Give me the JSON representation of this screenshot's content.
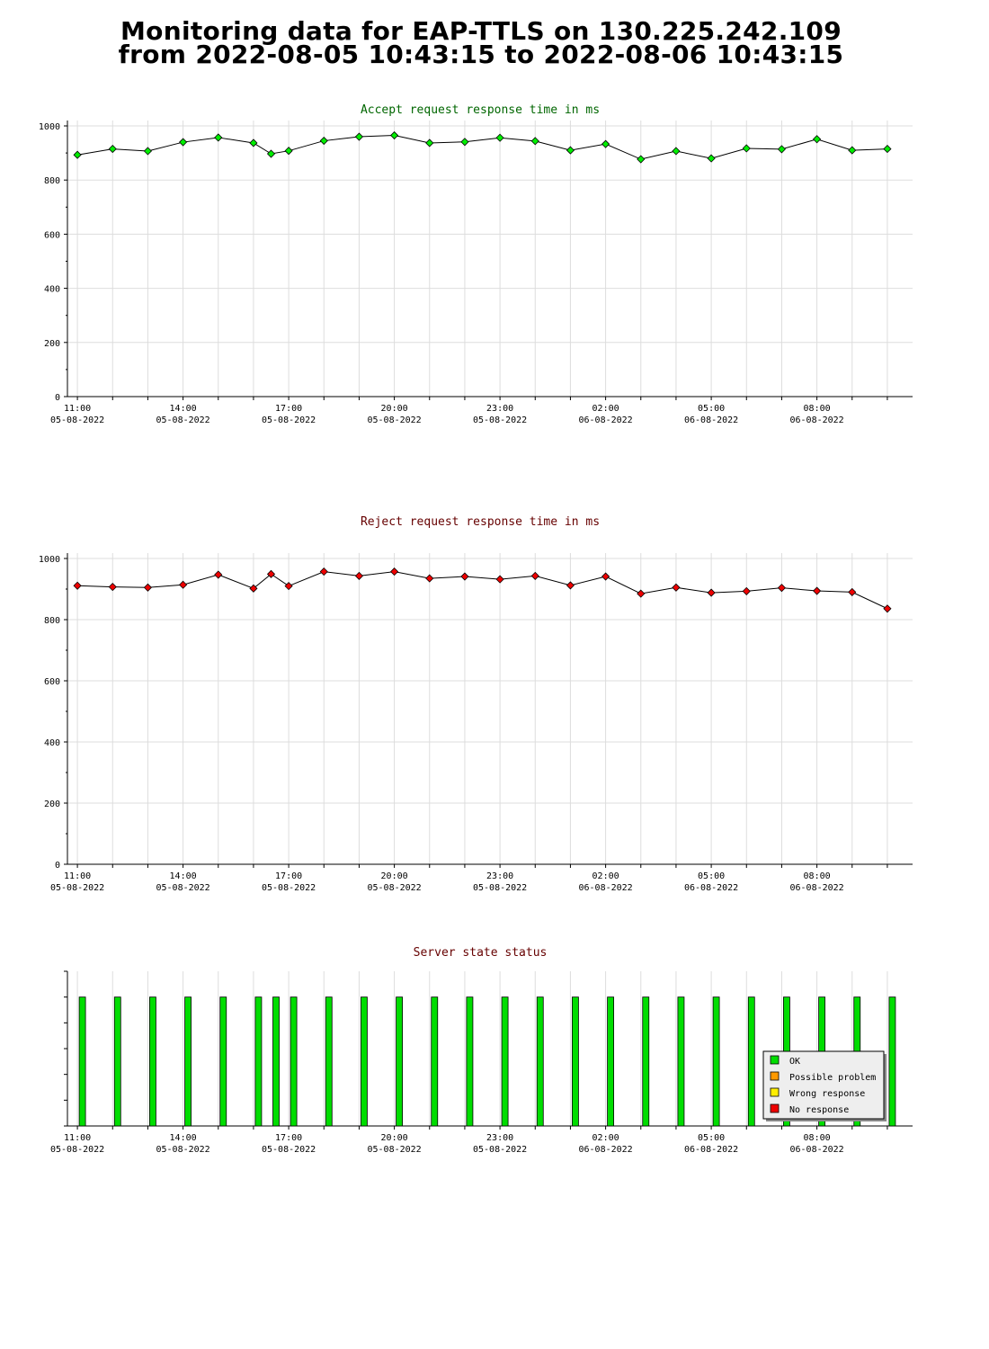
{
  "page": {
    "title_line1": "Monitoring data for EAP-TTLS on 130.225.242.109",
    "title_line2": "from 2022-08-05 10:43:15 to 2022-08-06 10:43:15"
  },
  "colors": {
    "accept_title": "#006600",
    "reject_title": "#660000",
    "status_title": "#660000",
    "accept_marker": "#00ee00",
    "reject_marker": "#ee0000",
    "ok": "#00dd00",
    "possible_problem": "#ff9900",
    "wrong_response": "#ffee00",
    "no_response": "#ee0000",
    "grid": "#dddddd"
  },
  "x_ticks": [
    {
      "time": "11:00",
      "date": "05-08-2022"
    },
    {
      "time": "14:00",
      "date": "05-08-2022"
    },
    {
      "time": "17:00",
      "date": "05-08-2022"
    },
    {
      "time": "20:00",
      "date": "05-08-2022"
    },
    {
      "time": "23:00",
      "date": "05-08-2022"
    },
    {
      "time": "02:00",
      "date": "06-08-2022"
    },
    {
      "time": "05:00",
      "date": "06-08-2022"
    },
    {
      "time": "08:00",
      "date": "06-08-2022"
    }
  ],
  "chart_data": [
    {
      "type": "line",
      "title": "Accept request response time in ms",
      "ylim": [
        0,
        1000
      ],
      "y_ticks": [
        0,
        200,
        400,
        600,
        800,
        1000
      ],
      "x_range": [
        "2022-08-05 10:43",
        "2022-08-06 10:43"
      ],
      "grid": true,
      "x": [
        "2022-08-05 11:00",
        "2022-08-05 12:00",
        "2022-08-05 13:00",
        "2022-08-05 14:00",
        "2022-08-05 15:00",
        "2022-08-05 16:00",
        "2022-08-05 16:30",
        "2022-08-05 17:00",
        "2022-08-05 18:00",
        "2022-08-05 19:00",
        "2022-08-05 20:00",
        "2022-08-05 21:00",
        "2022-08-05 22:00",
        "2022-08-05 23:00",
        "2022-08-06 00:00",
        "2022-08-06 01:00",
        "2022-08-06 02:00",
        "2022-08-06 03:00",
        "2022-08-06 04:00",
        "2022-08-06 05:00",
        "2022-08-06 06:00",
        "2022-08-06 07:00",
        "2022-08-06 08:00",
        "2022-08-06 09:00",
        "2022-08-06 10:00"
      ],
      "values": [
        893,
        915,
        907,
        940,
        957,
        937,
        897,
        908,
        945,
        960,
        965,
        937,
        941,
        956,
        944,
        910,
        933,
        877,
        907,
        880,
        917,
        914,
        951,
        910,
        915
      ]
    },
    {
      "type": "line",
      "title": "Reject request response time in ms",
      "ylim": [
        0,
        1000
      ],
      "y_ticks": [
        0,
        200,
        400,
        600,
        800,
        1000
      ],
      "x_range": [
        "2022-08-05 10:43",
        "2022-08-06 10:43"
      ],
      "grid": true,
      "x": [
        "2022-08-05 11:00",
        "2022-08-05 12:00",
        "2022-08-05 13:00",
        "2022-08-05 14:00",
        "2022-08-05 15:00",
        "2022-08-05 16:00",
        "2022-08-05 16:30",
        "2022-08-05 17:00",
        "2022-08-05 18:00",
        "2022-08-05 19:00",
        "2022-08-05 20:00",
        "2022-08-05 21:00",
        "2022-08-05 22:00",
        "2022-08-05 23:00",
        "2022-08-06 00:00",
        "2022-08-06 01:00",
        "2022-08-06 02:00",
        "2022-08-06 03:00",
        "2022-08-06 04:00",
        "2022-08-06 05:00",
        "2022-08-06 06:00",
        "2022-08-06 07:00",
        "2022-08-06 08:00",
        "2022-08-06 09:00",
        "2022-08-06 10:00"
      ],
      "values": [
        911,
        907,
        905,
        914,
        947,
        902,
        949,
        910,
        957,
        943,
        957,
        935,
        941,
        932,
        943,
        912,
        941,
        885,
        905,
        888,
        893,
        904,
        894,
        890,
        836
      ]
    },
    {
      "type": "bar",
      "title": "Server state status",
      "x_range": [
        "2022-08-05 10:43",
        "2022-08-06 10:43"
      ],
      "legend": [
        "OK",
        "Possible problem",
        "Wrong response",
        "No response"
      ],
      "legend_position": "bottom-right",
      "x": [
        "2022-08-05 11:00",
        "2022-08-05 12:00",
        "2022-08-05 13:00",
        "2022-08-05 14:00",
        "2022-08-05 15:00",
        "2022-08-05 16:00",
        "2022-08-05 16:30",
        "2022-08-05 17:00",
        "2022-08-05 18:00",
        "2022-08-05 19:00",
        "2022-08-05 20:00",
        "2022-08-05 21:00",
        "2022-08-05 22:00",
        "2022-08-05 23:00",
        "2022-08-06 00:00",
        "2022-08-06 01:00",
        "2022-08-06 02:00",
        "2022-08-06 03:00",
        "2022-08-06 04:00",
        "2022-08-06 05:00",
        "2022-08-06 06:00",
        "2022-08-06 07:00",
        "2022-08-06 08:00",
        "2022-08-06 09:00",
        "2022-08-06 10:00"
      ],
      "status": [
        "OK",
        "OK",
        "OK",
        "OK",
        "OK",
        "OK",
        "OK",
        "OK",
        "OK",
        "OK",
        "OK",
        "OK",
        "OK",
        "OK",
        "OK",
        "OK",
        "OK",
        "OK",
        "OK",
        "OK",
        "OK",
        "OK",
        "OK",
        "OK",
        "OK"
      ]
    }
  ]
}
